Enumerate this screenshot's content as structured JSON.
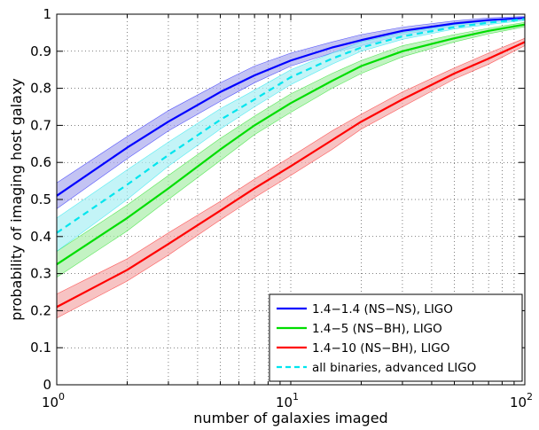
{
  "chart_data": {
    "type": "line",
    "xlabel": "number of galaxies imaged",
    "ylabel": "probability of imaging host galaxy",
    "x_scale": "log",
    "xlim": [
      1,
      100
    ],
    "ylim": [
      0,
      1
    ],
    "grid": true,
    "legend_position": "bottom-right",
    "x_ticks": [
      {
        "value": 1,
        "base": "10",
        "exp": "0"
      },
      {
        "value": 10,
        "base": "10",
        "exp": "1"
      },
      {
        "value": 100,
        "base": "10",
        "exp": "2"
      }
    ],
    "y_ticks": [
      "0",
      "0.1",
      "0.2",
      "0.3",
      "0.4",
      "0.5",
      "0.6",
      "0.7",
      "0.8",
      "0.9",
      "1"
    ],
    "x": [
      1,
      2,
      3,
      5,
      7,
      10,
      15,
      20,
      30,
      50,
      70,
      100
    ],
    "series": [
      {
        "name": "1.4−1.4 (NS−NS), LIGO",
        "color": "#0000ff",
        "band_color": "#aaaaee",
        "line_style": "solid",
        "values": [
          0.51,
          0.64,
          0.71,
          0.79,
          0.835,
          0.875,
          0.91,
          0.93,
          0.955,
          0.975,
          0.984,
          0.99
        ],
        "lower": [
          0.475,
          0.61,
          0.685,
          0.765,
          0.815,
          0.86,
          0.895,
          0.915,
          0.945,
          0.968,
          0.978,
          0.986
        ],
        "upper": [
          0.545,
          0.67,
          0.74,
          0.815,
          0.86,
          0.895,
          0.925,
          0.945,
          0.965,
          0.982,
          0.99,
          0.994
        ]
      },
      {
        "name": "1.4−5 (NS−BH), LIGO",
        "color": "#00dd00",
        "band_color": "#aaeeaa",
        "line_style": "solid",
        "values": [
          0.325,
          0.45,
          0.53,
          0.635,
          0.7,
          0.76,
          0.82,
          0.86,
          0.9,
          0.935,
          0.955,
          0.972
        ],
        "lower": [
          0.29,
          0.415,
          0.5,
          0.605,
          0.675,
          0.735,
          0.8,
          0.84,
          0.885,
          0.925,
          0.947,
          0.966
        ],
        "upper": [
          0.36,
          0.485,
          0.565,
          0.665,
          0.725,
          0.785,
          0.84,
          0.875,
          0.915,
          0.945,
          0.962,
          0.978
        ]
      },
      {
        "name": "1.4−10 (NS−BH), LIGO",
        "color": "#ff0000",
        "band_color": "#f3aaaa",
        "line_style": "solid",
        "values": [
          0.21,
          0.31,
          0.38,
          0.47,
          0.53,
          0.59,
          0.66,
          0.71,
          0.77,
          0.84,
          0.88,
          0.925
        ],
        "lower": [
          0.18,
          0.28,
          0.35,
          0.445,
          0.505,
          0.565,
          0.635,
          0.69,
          0.75,
          0.825,
          0.865,
          0.915
        ],
        "upper": [
          0.245,
          0.34,
          0.41,
          0.495,
          0.555,
          0.615,
          0.685,
          0.73,
          0.79,
          0.855,
          0.895,
          0.935
        ]
      },
      {
        "name": "all binaries, advanced LIGO",
        "color": "#00e5ee",
        "band_color": "#aaf0f3",
        "line_style": "dashed",
        "values": [
          0.41,
          0.54,
          0.62,
          0.715,
          0.77,
          0.83,
          0.88,
          0.91,
          0.94,
          0.965,
          0.977,
          0.987
        ],
        "lower": [
          0.36,
          0.5,
          0.59,
          0.69,
          0.75,
          0.81,
          0.865,
          0.9,
          0.932,
          0.96,
          0.972,
          0.983
        ],
        "upper": [
          0.45,
          0.58,
          0.655,
          0.745,
          0.795,
          0.85,
          0.895,
          0.925,
          0.95,
          0.972,
          0.982,
          0.99
        ]
      }
    ],
    "legend_order": [
      0,
      1,
      2,
      3
    ]
  }
}
